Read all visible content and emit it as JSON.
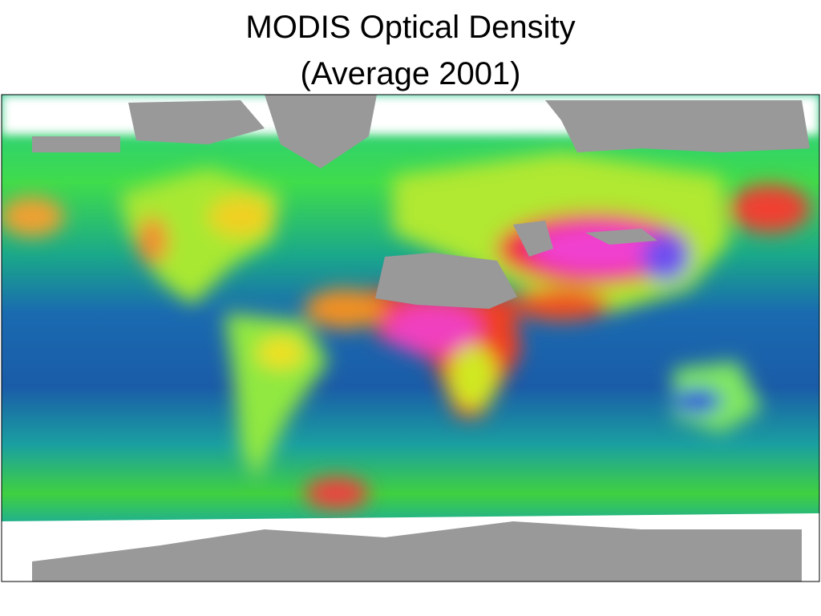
{
  "title": [
    "MODIS Optical Density",
    "(Average 2001)"
  ]
}
